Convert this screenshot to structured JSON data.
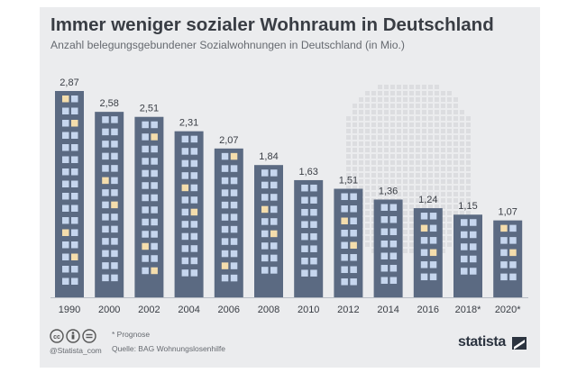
{
  "header": {
    "title": "Immer weniger sozialer Wohnraum in Deutschland",
    "subtitle": "Anzahl belegungsgebundener Sozialwohnungen in Deutschland (in Mio.)"
  },
  "chart_data": {
    "type": "bar",
    "title": "Immer weniger sozialer Wohnraum in Deutschland",
    "subtitle": "Anzahl belegungsgebundener Sozialwohnungen in Deutschland (in Mio.)",
    "categories": [
      "1990",
      "2000",
      "2002",
      "2004",
      "2006",
      "2008",
      "2010",
      "2012",
      "2014",
      "2016",
      "2018*",
      "2020*"
    ],
    "values": [
      2.87,
      2.58,
      2.51,
      2.31,
      2.07,
      1.84,
      1.63,
      1.51,
      1.36,
      1.24,
      1.15,
      1.07
    ],
    "value_labels": [
      "2,87",
      "2,58",
      "2,51",
      "2,31",
      "2,07",
      "1,84",
      "1,63",
      "1,51",
      "1,36",
      "1,24",
      "1,15",
      "1,07"
    ],
    "bar_style": "buildings with windows",
    "ylim": [
      0,
      2.87
    ],
    "grid": false,
    "colors": {
      "building": "#5b6a82",
      "window": "#c6d6ee",
      "window_lit": "#f4ddac",
      "background_map": "#dcdde0",
      "text": "#393d44"
    }
  },
  "footer": {
    "note": "* Prognose",
    "source": "Quelle: BAG Wohnungslosenhilfe",
    "handle": "@Statista_com",
    "brand": "statista",
    "icons": [
      "cc-icon",
      "by-icon",
      "nd-icon"
    ]
  }
}
